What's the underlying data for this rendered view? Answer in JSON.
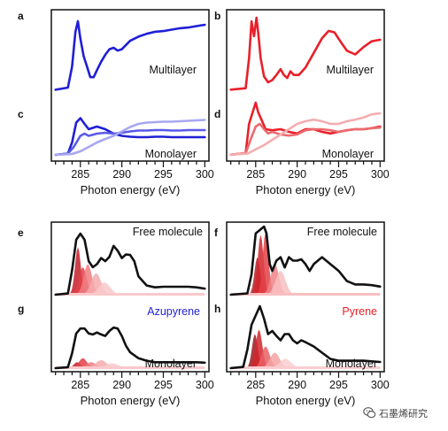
{
  "figure": {
    "x_axis_label": "Photon energy (eV)",
    "watermark": "石墨烯研究"
  },
  "colors": {
    "azupyrene": "#1f1fd6",
    "pyrene": "#e8202a",
    "black": "#111111"
  },
  "chart_data": [
    {
      "id": "a",
      "type": "line",
      "panel_label": "a",
      "annotation": "Multilayer",
      "x_ticks": [
        285,
        290,
        295,
        300
      ],
      "xlim": [
        281.5,
        300.5
      ],
      "series": [
        {
          "color": "#1f1fd6",
          "x": [
            282,
            283.5,
            284,
            284.4,
            284.7,
            285,
            285.4,
            285.8,
            286.2,
            286.6,
            287,
            287.5,
            288,
            288.5,
            289,
            289.5,
            290,
            291,
            292,
            293,
            294,
            295,
            296,
            297,
            298,
            299,
            300
          ],
          "y": [
            0.02,
            0.05,
            0.35,
            0.85,
            1.0,
            0.75,
            0.5,
            0.35,
            0.2,
            0.2,
            0.3,
            0.42,
            0.52,
            0.6,
            0.62,
            0.58,
            0.6,
            0.72,
            0.78,
            0.82,
            0.85,
            0.86,
            0.88,
            0.9,
            0.91,
            0.93,
            0.95
          ]
        }
      ]
    },
    {
      "id": "b",
      "type": "line",
      "panel_label": "b",
      "annotation": "Multilayer",
      "x_ticks": [
        285,
        290,
        295,
        300
      ],
      "xlim": [
        281.5,
        300.5
      ],
      "series": [
        {
          "color": "#e8202a",
          "x": [
            282,
            283.8,
            284.2,
            284.5,
            284.8,
            285.1,
            285.3,
            285.6,
            286,
            286.5,
            287,
            287.5,
            288,
            288.4,
            288.8,
            289.2,
            289.6,
            290.2,
            291,
            292,
            293,
            293.8,
            294.5,
            295.2,
            296,
            297,
            298,
            299,
            300
          ],
          "y": [
            0.02,
            0.04,
            0.45,
            0.95,
            0.75,
            1.0,
            0.8,
            0.45,
            0.2,
            0.12,
            0.15,
            0.22,
            0.3,
            0.22,
            0.18,
            0.27,
            0.22,
            0.22,
            0.32,
            0.52,
            0.72,
            0.82,
            0.8,
            0.68,
            0.55,
            0.5,
            0.6,
            0.68,
            0.7
          ]
        }
      ]
    },
    {
      "id": "c",
      "type": "line",
      "panel_label": "c",
      "annotation": "Monolayer",
      "x_ticks": [
        285,
        290,
        295,
        300
      ],
      "xlim": [
        281.5,
        300.5
      ],
      "series": [
        {
          "color": "#1f1fd6",
          "x": [
            282,
            283.5,
            284,
            284.5,
            285,
            285.5,
            286,
            287,
            288,
            289,
            290,
            291,
            292,
            293,
            294,
            295,
            296,
            297,
            298,
            299,
            300
          ],
          "y": [
            0.02,
            0.05,
            0.3,
            0.75,
            0.85,
            0.72,
            0.6,
            0.66,
            0.6,
            0.5,
            0.45,
            0.43,
            0.42,
            0.42,
            0.43,
            0.43,
            0.42,
            0.42,
            0.42,
            0.42,
            0.42
          ]
        },
        {
          "color": "#5a5ae8",
          "x": [
            282,
            283.5,
            284.2,
            285,
            285.5,
            286,
            287,
            288,
            289,
            290,
            291,
            292,
            293,
            294,
            295,
            296,
            297,
            298,
            299,
            300
          ],
          "y": [
            0.02,
            0.05,
            0.2,
            0.45,
            0.5,
            0.45,
            0.5,
            0.52,
            0.5,
            0.52,
            0.55,
            0.57,
            0.57,
            0.58,
            0.58,
            0.57,
            0.57,
            0.58,
            0.58,
            0.58
          ]
        },
        {
          "color": "#a7a7f2",
          "x": [
            282,
            284,
            285,
            286,
            287,
            288,
            289,
            290,
            291,
            292,
            293,
            294,
            295,
            296,
            297,
            298,
            299,
            300
          ],
          "y": [
            0.02,
            0.04,
            0.1,
            0.2,
            0.3,
            0.38,
            0.45,
            0.55,
            0.65,
            0.72,
            0.75,
            0.76,
            0.77,
            0.77,
            0.78,
            0.79,
            0.8,
            0.81
          ]
        }
      ]
    },
    {
      "id": "d",
      "type": "line",
      "panel_label": "d",
      "annotation": "Monolayer",
      "x_ticks": [
        285,
        290,
        295,
        300
      ],
      "xlim": [
        281.5,
        300.5
      ],
      "series": [
        {
          "color": "#e8202a",
          "x": [
            282,
            283.8,
            284.2,
            284.6,
            285,
            285.3,
            285.7,
            286.2,
            287,
            288,
            289,
            290,
            291,
            292,
            293,
            294,
            295,
            296,
            297,
            298,
            299,
            300
          ],
          "y": [
            0.02,
            0.05,
            0.6,
            0.8,
            1.0,
            0.82,
            0.68,
            0.5,
            0.48,
            0.5,
            0.45,
            0.42,
            0.5,
            0.5,
            0.45,
            0.42,
            0.45,
            0.48,
            0.5,
            0.5,
            0.52,
            0.55
          ]
        },
        {
          "color": "#ec6a6e",
          "x": [
            282,
            283.8,
            284.5,
            285,
            285.5,
            286,
            286.5,
            287,
            288,
            289,
            290,
            291,
            292,
            293,
            294,
            295,
            296,
            297,
            298,
            299,
            300
          ],
          "y": [
            0.02,
            0.05,
            0.35,
            0.55,
            0.6,
            0.5,
            0.42,
            0.45,
            0.4,
            0.38,
            0.4,
            0.48,
            0.5,
            0.5,
            0.48,
            0.45,
            0.48,
            0.5,
            0.5,
            0.52,
            0.53
          ]
        },
        {
          "color": "#f4aeb0",
          "x": [
            282,
            284,
            285,
            286,
            287,
            288,
            289,
            290,
            291,
            292,
            293,
            294,
            295,
            296,
            297,
            298,
            299,
            300
          ],
          "y": [
            0.02,
            0.04,
            0.12,
            0.2,
            0.3,
            0.4,
            0.5,
            0.6,
            0.65,
            0.68,
            0.65,
            0.6,
            0.6,
            0.65,
            0.68,
            0.72,
            0.78,
            0.8
          ]
        }
      ]
    },
    {
      "id": "e",
      "type": "line",
      "panel_label": "e",
      "annotation": "Free molecule",
      "x_ticks": [
        285,
        290,
        295,
        300
      ],
      "xlim": [
        281.5,
        300.5
      ],
      "series": [
        {
          "color": "#111111",
          "x": [
            282,
            283.5,
            284,
            284.5,
            285,
            285.5,
            286,
            286.5,
            287,
            287.5,
            288,
            288.5,
            289,
            289.5,
            290,
            290.5,
            291,
            291.5,
            292,
            293,
            294,
            295,
            296,
            297,
            298,
            299,
            300
          ],
          "y": [
            0.0,
            0.02,
            0.4,
            0.9,
            1.0,
            0.9,
            0.55,
            0.45,
            0.5,
            0.6,
            0.55,
            0.62,
            0.8,
            0.72,
            0.6,
            0.66,
            0.65,
            0.55,
            0.3,
            0.15,
            0.12,
            0.13,
            0.13,
            0.13,
            0.13,
            0.12,
            0.1
          ]
        }
      ],
      "components": [
        {
          "color": "#c41f2a",
          "center": 284.7,
          "amplitude": 0.78,
          "width": 0.35
        },
        {
          "color": "#e24149",
          "center": 285.3,
          "amplitude": 0.45,
          "width": 0.45
        },
        {
          "color": "#ef7d80",
          "center": 285.9,
          "amplitude": 0.5,
          "width": 0.5
        },
        {
          "color": "#f5aaad",
          "center": 286.9,
          "amplitude": 0.35,
          "width": 0.6
        },
        {
          "color": "#f9c9cb",
          "center": 287.9,
          "amplitude": 0.2,
          "width": 0.7
        }
      ]
    },
    {
      "id": "f",
      "type": "line",
      "panel_label": "f",
      "annotation": "Free molecule",
      "x_ticks": [
        285,
        290,
        295,
        300
      ],
      "xlim": [
        281.5,
        300.5
      ],
      "series": [
        {
          "color": "#111111",
          "x": [
            282,
            284,
            284.5,
            285,
            285.5,
            286,
            286.3,
            286.7,
            287,
            287.5,
            288,
            288.5,
            289,
            289.5,
            290,
            290.5,
            291,
            291.5,
            292,
            293,
            294,
            295,
            296,
            297,
            298,
            299,
            300
          ],
          "y": [
            0.0,
            0.02,
            0.3,
            0.9,
            0.95,
            1.0,
            0.9,
            0.45,
            0.35,
            0.5,
            0.55,
            0.4,
            0.55,
            0.5,
            0.5,
            0.52,
            0.45,
            0.35,
            0.45,
            0.55,
            0.45,
            0.35,
            0.2,
            0.15,
            0.15,
            0.14,
            0.12
          ]
        }
      ],
      "components": [
        {
          "color": "#b71c22",
          "center": 285.2,
          "amplitude": 0.55,
          "width": 0.35
        },
        {
          "color": "#d1262c",
          "center": 285.6,
          "amplitude": 0.88,
          "width": 0.35
        },
        {
          "color": "#e23f46",
          "center": 286.2,
          "amplitude": 0.92,
          "width": 0.35
        },
        {
          "color": "#ef8286",
          "center": 287.3,
          "amplitude": 0.45,
          "width": 0.5
        },
        {
          "color": "#f8bfc1",
          "center": 288.0,
          "amplitude": 0.35,
          "width": 0.6
        }
      ]
    },
    {
      "id": "g",
      "type": "line",
      "panel_label": "g",
      "annotation": "Monolayer",
      "molecule_label": "Azupyrene",
      "x_ticks": [
        285,
        290,
        295,
        300
      ],
      "xlim": [
        281.5,
        300.5
      ],
      "series": [
        {
          "color": "#111111",
          "x": [
            282,
            283.5,
            284,
            284.5,
            285,
            285.5,
            286,
            286.5,
            287,
            287.5,
            288,
            288.5,
            289,
            289.5,
            290,
            290.5,
            291,
            292,
            293,
            294,
            295,
            296,
            297,
            298,
            299,
            300
          ],
          "y": [
            0.0,
            0.02,
            0.3,
            0.7,
            0.8,
            0.8,
            0.7,
            0.68,
            0.72,
            0.68,
            0.65,
            0.75,
            0.82,
            0.8,
            0.65,
            0.45,
            0.32,
            0.2,
            0.15,
            0.12,
            0.12,
            0.12,
            0.12,
            0.12,
            0.12,
            0.11
          ]
        }
      ],
      "components": [
        {
          "color": "#c41f2a",
          "center": 284.6,
          "amplitude": 0.12,
          "width": 0.4
        },
        {
          "color": "#e24149",
          "center": 285.3,
          "amplitude": 0.2,
          "width": 0.5
        },
        {
          "color": "#ef7d80",
          "center": 286.3,
          "amplitude": 0.12,
          "width": 0.6
        },
        {
          "color": "#f5aaad",
          "center": 287.5,
          "amplitude": 0.16,
          "width": 0.7
        },
        {
          "color": "#f9c9cb",
          "center": 288.8,
          "amplitude": 0.1,
          "width": 0.8
        }
      ]
    },
    {
      "id": "h",
      "type": "line",
      "panel_label": "h",
      "annotation": "Monolayer",
      "molecule_label": "Pyrene",
      "x_ticks": [
        285,
        290,
        295,
        300
      ],
      "xlim": [
        281.5,
        300.5
      ],
      "series": [
        {
          "color": "#111111",
          "x": [
            282,
            283.5,
            284,
            284.5,
            285,
            285.5,
            286,
            286.5,
            287,
            287.5,
            288,
            288.5,
            289,
            289.5,
            290,
            290.5,
            291,
            292,
            293,
            294,
            295,
            296,
            297,
            298,
            299,
            300
          ],
          "y": [
            0.0,
            0.02,
            0.3,
            0.7,
            0.85,
            1.0,
            0.8,
            0.55,
            0.6,
            0.52,
            0.45,
            0.55,
            0.55,
            0.45,
            0.4,
            0.45,
            0.42,
            0.35,
            0.25,
            0.15,
            0.12,
            0.12,
            0.12,
            0.12,
            0.11,
            0.1
          ]
        }
      ],
      "components": [
        {
          "color": "#9c1a20",
          "center": 284.9,
          "amplitude": 0.55,
          "width": 0.35
        },
        {
          "color": "#d1262c",
          "center": 285.4,
          "amplitude": 0.62,
          "width": 0.4
        },
        {
          "color": "#ea5f64",
          "center": 286.2,
          "amplitude": 0.35,
          "width": 0.5
        },
        {
          "color": "#f4a2a5",
          "center": 287.3,
          "amplitude": 0.25,
          "width": 0.6
        },
        {
          "color": "#f9cdcf",
          "center": 288.6,
          "amplitude": 0.15,
          "width": 0.7
        }
      ]
    }
  ]
}
